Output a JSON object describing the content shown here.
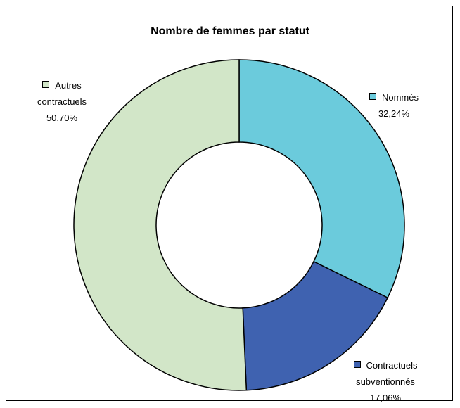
{
  "chart_data": {
    "type": "donut",
    "title": "Nombre de femmes par statut",
    "categories": [
      "Nommés",
      "Contractuels subventionnés",
      "Autres contractuels"
    ],
    "values": [
      32.24,
      17.06,
      50.7
    ],
    "value_labels": [
      "32,24%",
      "17,06%",
      "50,70%"
    ],
    "colors": [
      "#6bcbdc",
      "#3f62b0",
      "#d2e6c8"
    ]
  }
}
